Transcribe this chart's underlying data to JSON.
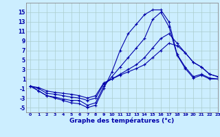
{
  "title": "Graphe des températures (°c)",
  "background_color": "#cceeff",
  "grid_color": "#aacccc",
  "line_color": "#0000aa",
  "ylim": [
    -6,
    17
  ],
  "xlim": [
    -0.5,
    23
  ],
  "yticks": [
    -5,
    -3,
    -1,
    1,
    3,
    5,
    7,
    9,
    11,
    13,
    15
  ],
  "x_labels": [
    "0",
    "1",
    "2",
    "3",
    "4",
    "5",
    "6",
    "7",
    "8",
    "9",
    "10",
    "11",
    "12",
    "13",
    "14",
    "15",
    "16",
    "17",
    "18",
    "19",
    "20",
    "21",
    "22",
    "23"
  ],
  "series": [
    {
      "x": [
        0,
        1,
        2,
        3,
        4,
        5,
        6,
        7,
        8,
        9,
        10,
        11,
        12,
        13,
        14,
        15,
        16,
        17,
        18,
        19,
        20,
        21,
        22,
        23
      ],
      "y": [
        -0.5,
        -1.5,
        -2.5,
        -3.0,
        -3.5,
        -4.0,
        -4.2,
        -5.0,
        -4.5,
        -1.0,
        2.5,
        7.0,
        10.5,
        12.5,
        14.5,
        15.5,
        15.5,
        13.0,
        6.2,
        3.5,
        1.5,
        2.0,
        1.2,
        1.0
      ]
    },
    {
      "x": [
        0,
        1,
        2,
        3,
        4,
        5,
        6,
        7,
        8,
        9,
        10,
        11,
        12,
        13,
        14,
        15,
        16,
        17,
        18,
        19,
        20,
        21,
        22,
        23
      ],
      "y": [
        -0.5,
        -1.5,
        -2.5,
        -2.8,
        -3.2,
        -3.5,
        -3.5,
        -4.5,
        -4.0,
        -0.5,
        1.5,
        3.5,
        5.5,
        7.5,
        9.5,
        13.5,
        15.0,
        12.0,
        6.0,
        3.2,
        1.2,
        1.8,
        1.0,
        1.0
      ]
    },
    {
      "x": [
        0,
        1,
        2,
        3,
        4,
        5,
        6,
        7,
        8,
        9,
        10,
        11,
        12,
        13,
        14,
        15,
        16,
        17,
        18,
        19,
        20,
        21,
        22,
        23
      ],
      "y": [
        -0.5,
        -1.0,
        -2.0,
        -2.2,
        -2.5,
        -2.8,
        -3.0,
        -3.5,
        -3.0,
        0.0,
        1.0,
        2.0,
        3.0,
        4.0,
        5.5,
        7.5,
        9.5,
        10.5,
        8.5,
        6.5,
        4.5,
        3.5,
        2.0,
        1.5
      ]
    },
    {
      "x": [
        0,
        1,
        2,
        3,
        4,
        5,
        6,
        7,
        8,
        9,
        10,
        11,
        12,
        13,
        14,
        15,
        16,
        17,
        18,
        19,
        20,
        21,
        22,
        23
      ],
      "y": [
        -0.5,
        -0.8,
        -1.5,
        -1.8,
        -2.0,
        -2.2,
        -2.5,
        -3.0,
        -2.5,
        0.2,
        1.0,
        1.8,
        2.5,
        3.2,
        4.0,
        5.5,
        7.0,
        8.5,
        8.0,
        6.5,
        4.5,
        3.5,
        2.0,
        1.5
      ]
    }
  ]
}
